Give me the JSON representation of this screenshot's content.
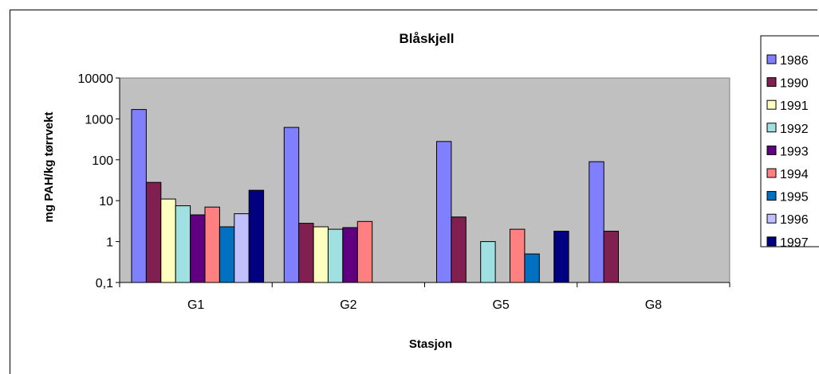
{
  "chart_data": {
    "type": "bar",
    "title": "Blåskjell",
    "xlabel": "Stasjon",
    "ylabel": "mg PAH/kg tørrvekt",
    "y_scale": "log",
    "ylim": [
      0.1,
      10000
    ],
    "y_ticks": [
      "0,1",
      "1",
      "10",
      "100",
      "1000",
      "10000"
    ],
    "y_tick_values": [
      0.1,
      1,
      10,
      100,
      1000,
      10000
    ],
    "categories": [
      "G1",
      "G2",
      "G5",
      "G8"
    ],
    "legend_position": "right",
    "grid": false,
    "plot_background": "#c0c0c0",
    "series": [
      {
        "name": "1986",
        "color": "#8080ff",
        "values": [
          1700,
          620,
          280,
          90
        ]
      },
      {
        "name": "1990",
        "color": "#7f2050",
        "values": [
          28,
          2.8,
          4,
          1.8
        ]
      },
      {
        "name": "1991",
        "color": "#ffffc0",
        "values": [
          11,
          2.3,
          null,
          null
        ]
      },
      {
        "name": "1992",
        "color": "#a0e0e0",
        "values": [
          7.5,
          2,
          1,
          null
        ]
      },
      {
        "name": "1993",
        "color": "#600080",
        "values": [
          4.5,
          2.2,
          null,
          null
        ]
      },
      {
        "name": "1994",
        "color": "#ff8080",
        "values": [
          7,
          3.1,
          2,
          null
        ]
      },
      {
        "name": "1995",
        "color": "#0070c0",
        "values": [
          2.3,
          null,
          0.5,
          null
        ]
      },
      {
        "name": "1996",
        "color": "#c0c0ff",
        "values": [
          4.8,
          null,
          null,
          null
        ]
      },
      {
        "name": "1997",
        "color": "#000080",
        "values": [
          18,
          null,
          1.8,
          null
        ]
      }
    ]
  }
}
